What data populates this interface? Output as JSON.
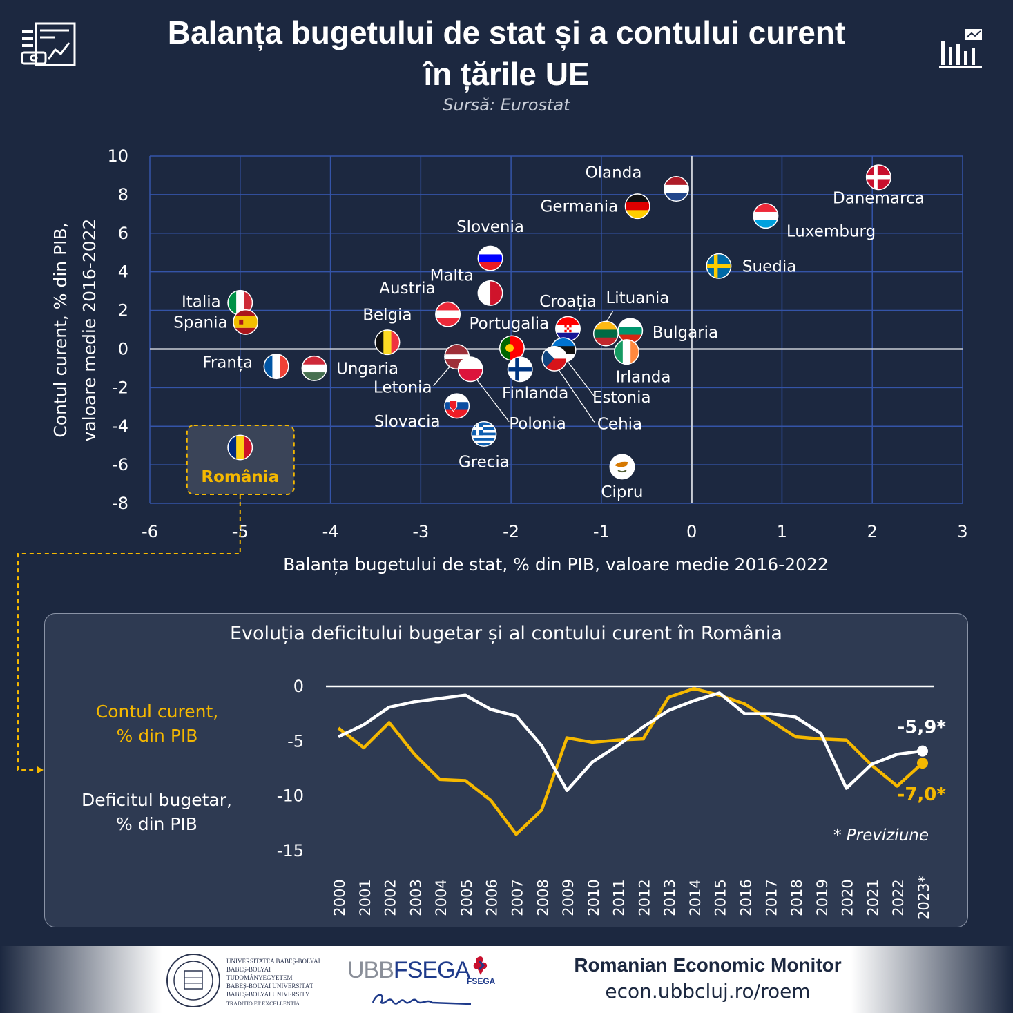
{
  "header": {
    "title_line1": "Balanța bugetului de stat și a contului curent",
    "title_line2": "în țările UE",
    "source": "Sursă: Eurostat"
  },
  "icons": {
    "left": "infographic-chart-icon",
    "right": "bar-chart-trend-icon"
  },
  "colors": {
    "background": "#1c2840",
    "panel": "#2e3a52",
    "accent_yellow": "#f5b800",
    "line_white": "#ffffff",
    "grid": "#3454a8",
    "text": "#ffffff"
  },
  "chart_data": [
    {
      "type": "scatter",
      "xlabel": "Balanța bugetului de stat, % din PIB, valoare medie 2016-2022",
      "ylabel_line1": "Contul curent, % din PIB,",
      "ylabel_line2": "valoare medie 2016-2022",
      "xlim": [
        -6,
        3
      ],
      "ylim": [
        -8,
        10
      ],
      "xticks": [
        -6,
        -5,
        -4,
        -3,
        -2,
        -1,
        0,
        1,
        2,
        3
      ],
      "yticks": [
        -8,
        -6,
        -4,
        -2,
        0,
        2,
        4,
        6,
        8,
        10
      ],
      "grid": true,
      "points": [
        {
          "label": "Danemarca",
          "x": 2.07,
          "y": 8.9,
          "flag": "dk"
        },
        {
          "label": "Olanda",
          "x": -0.17,
          "y": 8.3,
          "flag": "nl"
        },
        {
          "label": "Germania",
          "x": -0.6,
          "y": 7.4,
          "flag": "de"
        },
        {
          "label": "Luxemburg",
          "x": 0.82,
          "y": 6.9,
          "flag": "lu"
        },
        {
          "label": "Suedia",
          "x": 0.3,
          "y": 4.3,
          "flag": "se"
        },
        {
          "label": "Slovenia",
          "x": -2.23,
          "y": 4.7,
          "flag": "si"
        },
        {
          "label": "Malta",
          "x": -2.23,
          "y": 2.9,
          "flag": "mt"
        },
        {
          "label": "Austria",
          "x": -2.7,
          "y": 1.8,
          "flag": "at"
        },
        {
          "label": "Italia",
          "x": -5.0,
          "y": 2.4,
          "flag": "it"
        },
        {
          "label": "Spania",
          "x": -4.94,
          "y": 1.4,
          "flag": "es"
        },
        {
          "label": "Belgia",
          "x": -3.37,
          "y": 0.35,
          "flag": "be"
        },
        {
          "label": "Croația",
          "x": -1.37,
          "y": 1.05,
          "flag": "hr"
        },
        {
          "label": "Lituania",
          "x": -0.95,
          "y": 0.8,
          "flag": "lt"
        },
        {
          "label": "Bulgaria",
          "x": -0.68,
          "y": 0.95,
          "flag": "bg"
        },
        {
          "label": "Portugalia",
          "x": -1.99,
          "y": 0.05,
          "flag": "pt"
        },
        {
          "label": "Estonia",
          "x": -1.42,
          "y": -0.05,
          "flag": "ee"
        },
        {
          "label": "Cehia",
          "x": -1.52,
          "y": -0.5,
          "flag": "cz"
        },
        {
          "label": "Irlanda",
          "x": -0.72,
          "y": -0.15,
          "flag": "ie"
        },
        {
          "label": "Franța",
          "x": -4.6,
          "y": -0.9,
          "flag": "fr"
        },
        {
          "label": "Ungaria",
          "x": -4.18,
          "y": -1.0,
          "flag": "hu"
        },
        {
          "label": "Letonia",
          "x": -2.6,
          "y": -0.4,
          "flag": "lv"
        },
        {
          "label": "Polonia",
          "x": -2.45,
          "y": -1.05,
          "flag": "pl"
        },
        {
          "label": "Finlanda",
          "x": -1.9,
          "y": -1.05,
          "flag": "fi"
        },
        {
          "label": "Slovacia",
          "x": -2.6,
          "y": -2.95,
          "flag": "sk"
        },
        {
          "label": "Grecia",
          "x": -2.3,
          "y": -4.4,
          "flag": "gr"
        },
        {
          "label": "Cipru",
          "x": -0.77,
          "y": -6.1,
          "flag": "cy"
        },
        {
          "label": "România",
          "x": -5.0,
          "y": -5.1,
          "flag": "ro",
          "highlight": true
        }
      ]
    },
    {
      "type": "line",
      "title": "Evoluția deficitului bugetar și al contului curent în România",
      "x": [
        "2000",
        "2001",
        "2002",
        "2003",
        "2004",
        "2005",
        "2006",
        "2007",
        "2008",
        "2009",
        "2010",
        "2011",
        "2012",
        "2013",
        "2014",
        "2015",
        "2016",
        "2017",
        "2018",
        "2019",
        "2020",
        "2021",
        "2022",
        "2023*"
      ],
      "ylim": [
        -15,
        0
      ],
      "yticks": [
        0,
        -5,
        -10,
        -15
      ],
      "series": [
        {
          "name": "Contul curent, % din PIB",
          "color": "#f5b800",
          "values": [
            -3.8,
            -5.6,
            -3.3,
            -6.2,
            -8.5,
            -8.6,
            -10.4,
            -13.5,
            -11.3,
            -4.7,
            -5.1,
            -4.9,
            -4.8,
            -1.0,
            -0.2,
            -0.8,
            -1.6,
            -3.1,
            -4.6,
            -4.8,
            -4.9,
            -7.2,
            -9.1,
            -7.0
          ]
        },
        {
          "name": "Deficitul bugetar, % din PIB",
          "color": "#ffffff",
          "values": [
            -4.6,
            -3.5,
            -1.9,
            -1.4,
            -1.1,
            -0.8,
            -2.1,
            -2.7,
            -5.4,
            -9.5,
            -6.9,
            -5.4,
            -3.7,
            -2.2,
            -1.3,
            -0.6,
            -2.5,
            -2.5,
            -2.8,
            -4.3,
            -9.3,
            -7.1,
            -6.2,
            -5.9
          ]
        }
      ],
      "end_labels": {
        "current_account": "-7,0*",
        "budget": "-5,9*"
      },
      "note": "* Previziune"
    }
  ],
  "highlight_label": "România",
  "legend": {
    "current_account_line1": "Contul curent,",
    "current_account_line2": "% din PIB",
    "budget_line1": "Deficitul bugetar,",
    "budget_line2": "% din PIB"
  },
  "footer": {
    "univ_lines": [
      "UNIVERSITATEA BABEȘ-BOLYAI",
      "BABEȘ-BOLYAI TUDOMÁNYEGYETEM",
      "BABEȘ-BOLYAI UNIVERSITÄT",
      "BABEȘ-BOLYAI UNIVERSITY",
      "TRADITIO ET EXCELLENTIA"
    ],
    "fsega_part1": "UBB",
    "fsega_part2": "FSEGA",
    "fsega_small": "FSEGA",
    "brand": "Romanian Economic Monitor",
    "url": "econ.ubbcluj.ro/roem"
  }
}
